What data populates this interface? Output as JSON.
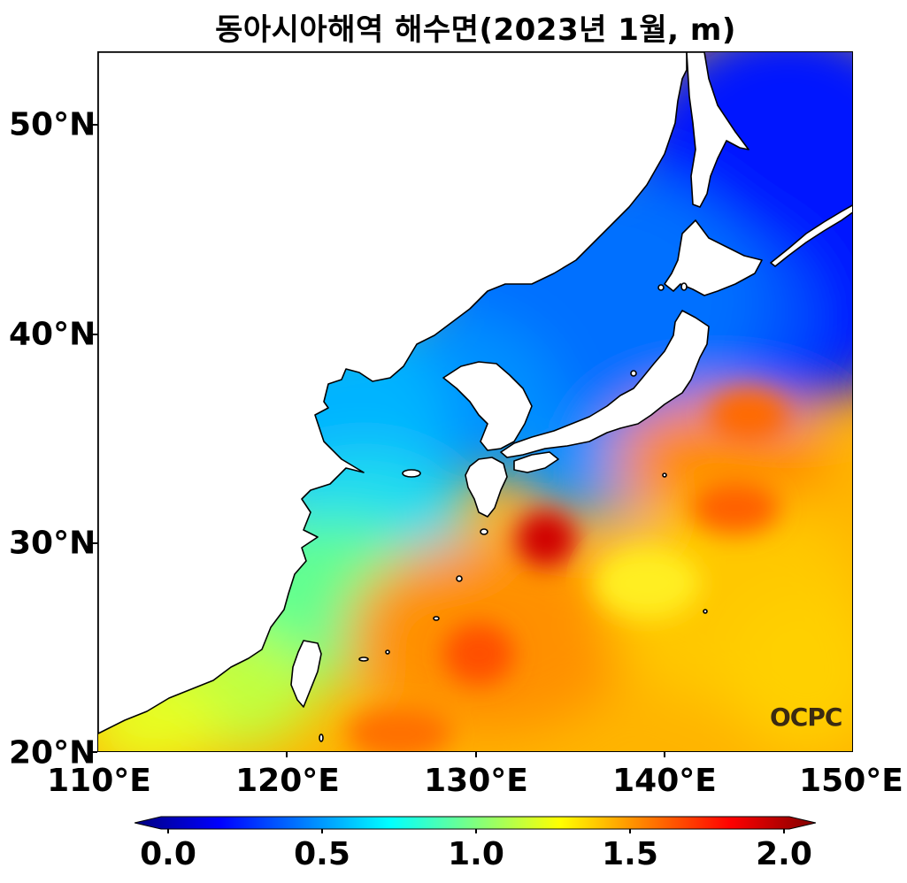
{
  "title": "동아시아해역 해수면(2023년 1월, m)",
  "y_ticks": [
    {
      "label": "50°N",
      "lat": 50
    },
    {
      "label": "40°N",
      "lat": 40
    },
    {
      "label": "30°N",
      "lat": 30
    },
    {
      "label": "20°N",
      "lat": 20
    }
  ],
  "x_ticks": [
    {
      "label": "110°E",
      "lon": 110
    },
    {
      "label": "120°E",
      "lon": 120
    },
    {
      "label": "130°E",
      "lon": 130
    },
    {
      "label": "140°E",
      "lon": 140
    },
    {
      "label": "150°E",
      "lon": 150
    }
  ],
  "colorbar": {
    "ticks": [
      "0.0",
      "0.5",
      "1.0",
      "1.5",
      "2.0"
    ],
    "range": [
      0.0,
      2.0
    ],
    "colormap": "jet",
    "colors": [
      "#00007f",
      "#0000ff",
      "#007fff",
      "#00ffff",
      "#7fff7f",
      "#ffff00",
      "#ff7f00",
      "#ff0000",
      "#7f0000"
    ]
  },
  "logo": "OCPC",
  "extent": {
    "lon": [
      110,
      150
    ],
    "lat": [
      20,
      53.5
    ]
  }
}
